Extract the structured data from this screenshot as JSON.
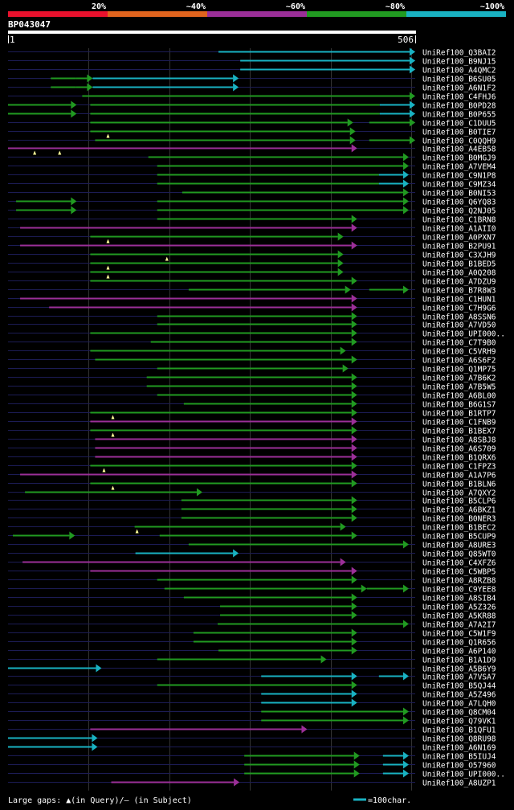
{
  "query_id": "BP043047",
  "scale": {
    "start_label": "1",
    "end_label": "506",
    "length": 506
  },
  "identity_legend": [
    {
      "label": "20%",
      "color": "#e8112d"
    },
    {
      "label": "~40%",
      "color": "#e0641e"
    },
    {
      "label": "~60%",
      "color": "#9b2f98"
    },
    {
      "label": "~80%",
      "color": "#219a21"
    },
    {
      "label": "~100%",
      "color": "#19b2c2"
    }
  ],
  "footer": {
    "gap_legend": "Large gaps: ▲(in Query)/– (in Subject)",
    "scale_legend": "=100char."
  },
  "colors": {
    "cyan": "#19b2c2",
    "green": "#219a21",
    "purple": "#9b2f98",
    "track": "#1c1c55",
    "grid": "#333333",
    "text": "#ffffff",
    "marker": "#ffff99"
  },
  "hits": [
    {
      "name": "UniRef100_Q3BAI2",
      "segs": [
        {
          "s": 262,
          "e": 506,
          "c": "cyan",
          "a": 1
        }
      ]
    },
    {
      "name": "UniRef100_B9NJ15",
      "segs": [
        {
          "s": 289,
          "e": 506,
          "c": "cyan",
          "a": 1
        }
      ]
    },
    {
      "name": "UniRef100_A4QMC2",
      "segs": [
        {
          "s": 289,
          "e": 506,
          "c": "cyan",
          "a": 1
        }
      ]
    },
    {
      "name": "UniRef100_B6SU05",
      "segs": [
        {
          "s": 54,
          "e": 85,
          "c": "green"
        },
        {
          "s": 85,
          "e": 106,
          "c": "green",
          "a": 1
        },
        {
          "s": 106,
          "e": 287,
          "c": "cyan",
          "a": 1
        }
      ]
    },
    {
      "name": "UniRef100_A6N1F2",
      "segs": [
        {
          "s": 54,
          "e": 85,
          "c": "green"
        },
        {
          "s": 85,
          "e": 106,
          "c": "green",
          "a": 1
        },
        {
          "s": 106,
          "e": 287,
          "c": "cyan",
          "a": 1
        }
      ]
    },
    {
      "name": "UniRef100_C4FHJ6",
      "segs": [
        {
          "s": 93,
          "e": 506,
          "c": "green",
          "a": 1
        }
      ]
    },
    {
      "name": "UniRef100_B0PD28",
      "segs": [
        {
          "s": 1,
          "e": 86,
          "c": "green",
          "a": 1
        },
        {
          "s": 103,
          "e": 462,
          "c": "green"
        },
        {
          "s": 462,
          "e": 506,
          "c": "cyan",
          "a": 1
        }
      ]
    },
    {
      "name": "UniRef100_B0P655",
      "segs": [
        {
          "s": 1,
          "e": 86,
          "c": "green",
          "a": 1
        },
        {
          "s": 103,
          "e": 462,
          "c": "green"
        },
        {
          "s": 462,
          "e": 506,
          "c": "cyan",
          "a": 1
        }
      ]
    },
    {
      "name": "UniRef100_C1DUU5",
      "segs": [
        {
          "s": 103,
          "e": 429,
          "c": "green",
          "a": 1
        },
        {
          "s": 449,
          "e": 506,
          "c": "green",
          "a": 1
        }
      ]
    },
    {
      "name": "UniRef100_B0TIE7",
      "segs": [
        {
          "s": 103,
          "e": 432,
          "c": "green",
          "a": 1
        }
      ],
      "markers": [
        125
      ]
    },
    {
      "name": "UniRef100_C0QQH9",
      "segs": [
        {
          "s": 109,
          "e": 432,
          "c": "green",
          "a": 1
        },
        {
          "s": 449,
          "e": 506,
          "c": "green",
          "a": 1
        }
      ]
    },
    {
      "name": "UniRef100_A4EB58",
      "segs": [
        {
          "s": 1,
          "e": 434,
          "c": "purple",
          "a": 1
        }
      ],
      "markers": [
        34,
        65
      ]
    },
    {
      "name": "UniRef100_B0MGJ9",
      "segs": [
        {
          "s": 175,
          "e": 498,
          "c": "green",
          "a": 1
        }
      ]
    },
    {
      "name": "UniRef100_A7VEM4",
      "segs": [
        {
          "s": 186,
          "e": 498,
          "c": "green",
          "a": 1
        }
      ]
    },
    {
      "name": "UniRef100_C9N1P8",
      "segs": [
        {
          "s": 186,
          "e": 461,
          "c": "green"
        },
        {
          "s": 461,
          "e": 498,
          "c": "cyan",
          "a": 1
        }
      ]
    },
    {
      "name": "UniRef100_C9MZ34",
      "segs": [
        {
          "s": 186,
          "e": 461,
          "c": "green"
        },
        {
          "s": 461,
          "e": 498,
          "c": "cyan",
          "a": 1
        }
      ]
    },
    {
      "name": "UniRef100_B0NI53",
      "segs": [
        {
          "s": 217,
          "e": 498,
          "c": "green",
          "a": 1
        }
      ]
    },
    {
      "name": "UniRef100_Q6YQ83",
      "segs": [
        {
          "s": 11,
          "e": 86,
          "c": "green",
          "a": 1
        },
        {
          "s": 186,
          "e": 498,
          "c": "green",
          "a": 1
        }
      ]
    },
    {
      "name": "UniRef100_Q2NJ05",
      "segs": [
        {
          "s": 11,
          "e": 86,
          "c": "green",
          "a": 1
        },
        {
          "s": 186,
          "e": 498,
          "c": "green",
          "a": 1
        }
      ]
    },
    {
      "name": "UniRef100_C1BRN8",
      "segs": [
        {
          "s": 186,
          "e": 434,
          "c": "green",
          "a": 1
        }
      ]
    },
    {
      "name": "UniRef100_A1AII0",
      "segs": [
        {
          "s": 16,
          "e": 434,
          "c": "purple",
          "a": 1
        }
      ]
    },
    {
      "name": "UniRef100_A0PXN7",
      "segs": [
        {
          "s": 103,
          "e": 417,
          "c": "green",
          "a": 1
        }
      ],
      "markers": [
        125
      ]
    },
    {
      "name": "UniRef100_B2PU91",
      "segs": [
        {
          "s": 16,
          "e": 434,
          "c": "purple",
          "a": 1
        }
      ]
    },
    {
      "name": "UniRef100_C3XJH9",
      "segs": [
        {
          "s": 103,
          "e": 417,
          "c": "green",
          "a": 1
        }
      ],
      "markers": [
        198
      ]
    },
    {
      "name": "UniRef100_B1BED5",
      "segs": [
        {
          "s": 103,
          "e": 417,
          "c": "green",
          "a": 1
        }
      ],
      "markers": [
        125
      ]
    },
    {
      "name": "UniRef100_A0Q208",
      "segs": [
        {
          "s": 103,
          "e": 417,
          "c": "green",
          "a": 1
        }
      ],
      "markers": [
        125
      ]
    },
    {
      "name": "UniRef100_A7DZU9",
      "segs": [
        {
          "s": 103,
          "e": 434,
          "c": "green",
          "a": 1
        }
      ]
    },
    {
      "name": "UniRef100_B7R8W3",
      "segs": [
        {
          "s": 225,
          "e": 426,
          "c": "green",
          "a": 1
        },
        {
          "s": 449,
          "e": 498,
          "c": "green",
          "a": 1
        }
      ]
    },
    {
      "name": "UniRef100_C1HUN1",
      "segs": [
        {
          "s": 16,
          "e": 434,
          "c": "purple",
          "a": 1
        }
      ]
    },
    {
      "name": "UniRef100_C7H9G6",
      "segs": [
        {
          "s": 52,
          "e": 434,
          "c": "purple",
          "a": 1
        }
      ]
    },
    {
      "name": "UniRef100_A8SSN6",
      "segs": [
        {
          "s": 186,
          "e": 434,
          "c": "green",
          "a": 1
        }
      ]
    },
    {
      "name": "UniRef100_A7VD50",
      "segs": [
        {
          "s": 186,
          "e": 434,
          "c": "green",
          "a": 1
        }
      ]
    },
    {
      "name": "UniRef100_UPI000..",
      "segs": [
        {
          "s": 103,
          "e": 434,
          "c": "green",
          "a": 1
        }
      ]
    },
    {
      "name": "UniRef100_C7T9B0",
      "segs": [
        {
          "s": 178,
          "e": 434,
          "c": "green",
          "a": 1
        }
      ]
    },
    {
      "name": "UniRef100_C5VRH9",
      "segs": [
        {
          "s": 103,
          "e": 420,
          "c": "green",
          "a": 1
        }
      ]
    },
    {
      "name": "UniRef100_A6S6F2",
      "segs": [
        {
          "s": 109,
          "e": 434,
          "c": "green",
          "a": 1
        }
      ]
    },
    {
      "name": "UniRef100_Q1MP75",
      "segs": [
        {
          "s": 186,
          "e": 423,
          "c": "green",
          "a": 1
        }
      ]
    },
    {
      "name": "UniRef100_A7B6K2",
      "segs": [
        {
          "s": 173,
          "e": 434,
          "c": "green",
          "a": 1
        }
      ]
    },
    {
      "name": "UniRef100_A7B5W5",
      "segs": [
        {
          "s": 173,
          "e": 434,
          "c": "green",
          "a": 1
        }
      ]
    },
    {
      "name": "UniRef100_A6BL00",
      "segs": [
        {
          "s": 186,
          "e": 434,
          "c": "green",
          "a": 1
        }
      ]
    },
    {
      "name": "UniRef100_B6G1S7",
      "segs": [
        {
          "s": 219,
          "e": 434,
          "c": "green",
          "a": 1
        }
      ]
    },
    {
      "name": "UniRef100_B1RTP7",
      "segs": [
        {
          "s": 103,
          "e": 434,
          "c": "green",
          "a": 1
        }
      ],
      "markers": [
        131
      ]
    },
    {
      "name": "UniRef100_C1FNB9",
      "segs": [
        {
          "s": 103,
          "e": 434,
          "c": "purple",
          "a": 1
        }
      ]
    },
    {
      "name": "UniRef100_B1BEX7",
      "segs": [
        {
          "s": 103,
          "e": 434,
          "c": "green",
          "a": 1
        }
      ],
      "markers": [
        131
      ]
    },
    {
      "name": "UniRef100_A8SBJ8",
      "segs": [
        {
          "s": 109,
          "e": 434,
          "c": "purple",
          "a": 1
        }
      ]
    },
    {
      "name": "UniRef100_A6S709",
      "segs": [
        {
          "s": 109,
          "e": 434,
          "c": "purple",
          "a": 1
        }
      ]
    },
    {
      "name": "UniRef100_B1QRX6",
      "segs": [
        {
          "s": 109,
          "e": 434,
          "c": "purple",
          "a": 1
        }
      ]
    },
    {
      "name": "UniRef100_C1FPZ3",
      "segs": [
        {
          "s": 103,
          "e": 434,
          "c": "green",
          "a": 1
        }
      ],
      "markers": [
        120
      ]
    },
    {
      "name": "UniRef100_A1A7P6",
      "segs": [
        {
          "s": 16,
          "e": 434,
          "c": "purple",
          "a": 1
        }
      ]
    },
    {
      "name": "UniRef100_B1BLN6",
      "segs": [
        {
          "s": 103,
          "e": 434,
          "c": "green",
          "a": 1
        }
      ],
      "markers": [
        131
      ]
    },
    {
      "name": "UniRef100_A7QXY2",
      "segs": [
        {
          "s": 22,
          "e": 242,
          "c": "green",
          "a": 1
        }
      ]
    },
    {
      "name": "UniRef100_B5CLP6",
      "segs": [
        {
          "s": 216,
          "e": 434,
          "c": "green",
          "a": 1
        }
      ]
    },
    {
      "name": "UniRef100_A6BKZ1",
      "segs": [
        {
          "s": 216,
          "e": 434,
          "c": "green",
          "a": 1
        }
      ]
    },
    {
      "name": "UniRef100_B0NER3",
      "segs": [
        {
          "s": 216,
          "e": 434,
          "c": "green",
          "a": 1
        }
      ]
    },
    {
      "name": "UniRef100_B1BEC2",
      "segs": [
        {
          "s": 158,
          "e": 420,
          "c": "green",
          "a": 1
        }
      ],
      "markers": [
        161
      ]
    },
    {
      "name": "UniRef100_B5CUP9",
      "segs": [
        {
          "s": 7,
          "e": 84,
          "c": "green",
          "a": 1
        },
        {
          "s": 189,
          "e": 434,
          "c": "green",
          "a": 1
        }
      ]
    },
    {
      "name": "UniRef100_A8URE3",
      "segs": [
        {
          "s": 225,
          "e": 498,
          "c": "green",
          "a": 1
        }
      ]
    },
    {
      "name": "UniRef100_Q85WT0",
      "segs": [
        {
          "s": 159,
          "e": 287,
          "c": "cyan",
          "a": 1
        }
      ]
    },
    {
      "name": "UniRef100_C4XFZ6",
      "segs": [
        {
          "s": 19,
          "e": 420,
          "c": "purple",
          "a": 1
        }
      ]
    },
    {
      "name": "UniRef100_C5WBP5",
      "segs": [
        {
          "s": 103,
          "e": 434,
          "c": "purple",
          "a": 1
        }
      ]
    },
    {
      "name": "UniRef100_A8RZB8",
      "segs": [
        {
          "s": 186,
          "e": 434,
          "c": "green",
          "a": 1
        }
      ]
    },
    {
      "name": "UniRef100_C9YEE8",
      "segs": [
        {
          "s": 195,
          "e": 446,
          "c": "green",
          "a": 1
        },
        {
          "s": 446,
          "e": 498,
          "c": "green",
          "a": 1
        }
      ]
    },
    {
      "name": "UniRef100_A8SIB4",
      "segs": [
        {
          "s": 219,
          "e": 434,
          "c": "green",
          "a": 1
        }
      ]
    },
    {
      "name": "UniRef100_A5Z326",
      "segs": [
        {
          "s": 264,
          "e": 434,
          "c": "green",
          "a": 1
        }
      ]
    },
    {
      "name": "UniRef100_A5KR88",
      "segs": [
        {
          "s": 264,
          "e": 434,
          "c": "green",
          "a": 1
        }
      ]
    },
    {
      "name": "UniRef100_A7A2I7",
      "segs": [
        {
          "s": 261,
          "e": 498,
          "c": "green",
          "a": 1
        }
      ]
    },
    {
      "name": "UniRef100_C5W1F9",
      "segs": [
        {
          "s": 231,
          "e": 434,
          "c": "green",
          "a": 1
        }
      ]
    },
    {
      "name": "UniRef100_Q1R656",
      "segs": [
        {
          "s": 231,
          "e": 434,
          "c": "green",
          "a": 1
        }
      ]
    },
    {
      "name": "UniRef100_A6P140",
      "segs": [
        {
          "s": 262,
          "e": 434,
          "c": "green",
          "a": 1
        }
      ]
    },
    {
      "name": "UniRef100_B1A1D9",
      "segs": [
        {
          "s": 186,
          "e": 396,
          "c": "green",
          "a": 1
        }
      ]
    },
    {
      "name": "UniRef100_A5B6Y9",
      "segs": [
        {
          "s": 1,
          "e": 117,
          "c": "cyan",
          "a": 1
        }
      ]
    },
    {
      "name": "UniRef100_A7VSA7",
      "segs": [
        {
          "s": 315,
          "e": 434,
          "c": "cyan",
          "a": 1
        },
        {
          "s": 461,
          "e": 498,
          "c": "cyan",
          "a": 1
        }
      ]
    },
    {
      "name": "UniRef100_B5QJ44",
      "segs": [
        {
          "s": 186,
          "e": 434,
          "c": "green",
          "a": 1
        }
      ]
    },
    {
      "name": "UniRef100_A5Z496",
      "segs": [
        {
          "s": 315,
          "e": 434,
          "c": "cyan",
          "a": 1
        }
      ]
    },
    {
      "name": "UniRef100_A7LQH0",
      "segs": [
        {
          "s": 315,
          "e": 434,
          "c": "cyan",
          "a": 1
        }
      ]
    },
    {
      "name": "UniRef100_Q8CM04",
      "segs": [
        {
          "s": 315,
          "e": 498,
          "c": "green",
          "a": 1
        }
      ]
    },
    {
      "name": "UniRef100_Q79VK1",
      "segs": [
        {
          "s": 315,
          "e": 498,
          "c": "green",
          "a": 1
        }
      ]
    },
    {
      "name": "UniRef100_B1QFU1",
      "segs": [
        {
          "s": 103,
          "e": 372,
          "c": "purple",
          "a": 1
        }
      ]
    },
    {
      "name": "UniRef100_Q8RU98",
      "segs": [
        {
          "s": 1,
          "e": 112,
          "c": "cyan",
          "a": 1
        }
      ]
    },
    {
      "name": "UniRef100_A6N169",
      "segs": [
        {
          "s": 1,
          "e": 112,
          "c": "cyan",
          "a": 1
        }
      ]
    },
    {
      "name": "UniRef100_B5IUJ4",
      "segs": [
        {
          "s": 294,
          "e": 437,
          "c": "green",
          "a": 1
        },
        {
          "s": 466,
          "e": 498,
          "c": "cyan",
          "a": 1
        }
      ]
    },
    {
      "name": "UniRef100_O57960",
      "segs": [
        {
          "s": 294,
          "e": 437,
          "c": "green",
          "a": 1
        },
        {
          "s": 466,
          "e": 498,
          "c": "cyan",
          "a": 1
        }
      ]
    },
    {
      "name": "UniRef100_UPI000..",
      "segs": [
        {
          "s": 294,
          "e": 437,
          "c": "green",
          "a": 1
        },
        {
          "s": 466,
          "e": 498,
          "c": "cyan",
          "a": 1
        }
      ]
    },
    {
      "name": "UniRef100_A8UZP1",
      "segs": [
        {
          "s": 129,
          "e": 288,
          "c": "purple",
          "a": 1
        }
      ]
    }
  ]
}
